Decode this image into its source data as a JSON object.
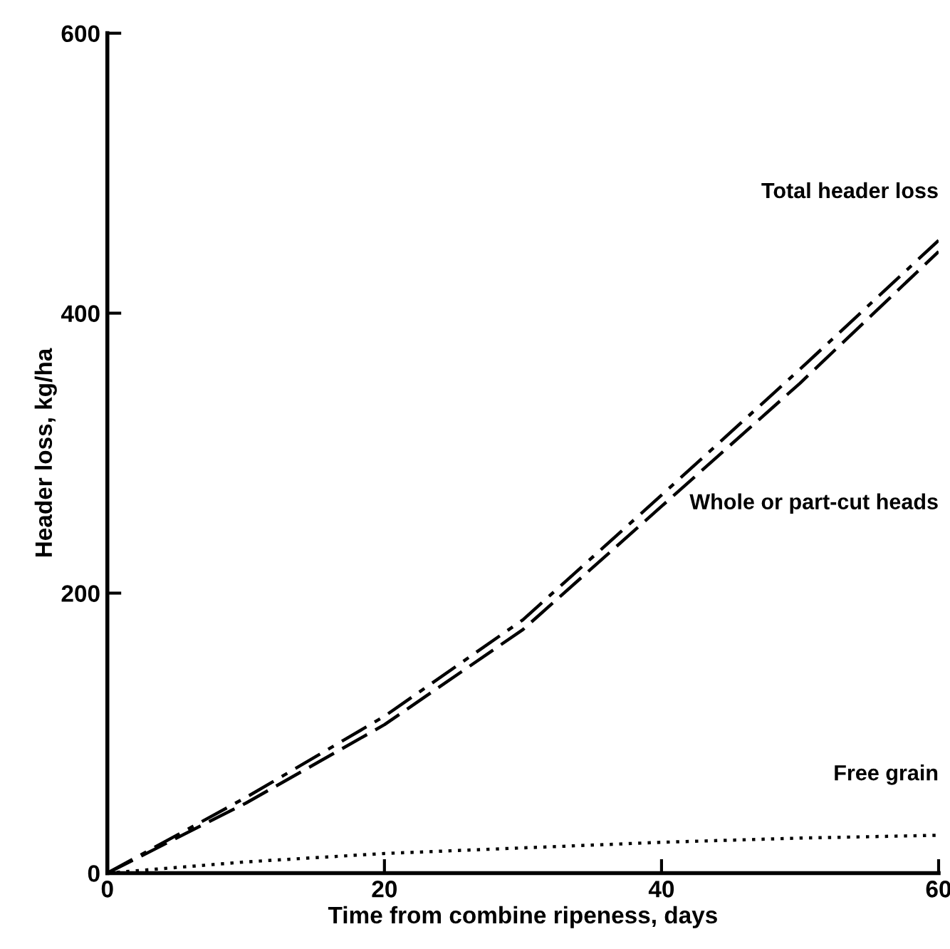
{
  "chart_data": {
    "type": "line",
    "xlabel": "Time from combine ripeness, days",
    "ylabel": "Header loss, kg/ha",
    "x": [
      0,
      10,
      20,
      30,
      40,
      50,
      60
    ],
    "series": [
      {
        "name": "Total header loss",
        "color": "#000000",
        "line_style": "dashdot",
        "values": [
          0,
          54,
          112,
          181,
          270,
          360,
          452
        ]
      },
      {
        "name": "Whole or part-cut heads",
        "color": "#000000",
        "line_style": "dashed",
        "values": [
          0,
          50,
          106,
          174,
          262,
          350,
          444
        ]
      },
      {
        "name": "Free grain",
        "color": "#000000",
        "line_style": "dotted",
        "values": [
          0,
          8,
          14,
          18,
          22,
          25,
          27
        ]
      }
    ],
    "xlim": [
      0,
      60
    ],
    "ylim": [
      0,
      600
    ],
    "xticks": [
      0,
      20,
      40,
      60
    ],
    "yticks": [
      0,
      200,
      400,
      600
    ],
    "grid": false,
    "legend": false,
    "marker": "none"
  }
}
